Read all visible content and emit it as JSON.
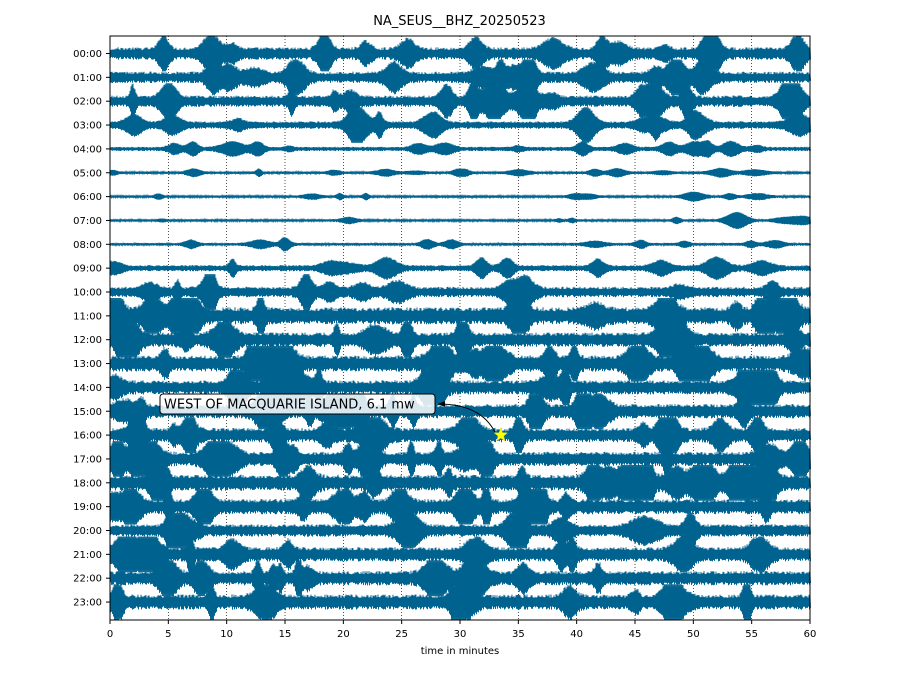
{
  "chart_data": {
    "type": "line",
    "title": "NA_SEUS__BHZ_20250523",
    "xlabel": "time in minutes",
    "ylabel": "",
    "xlim": [
      0,
      60
    ],
    "x_ticks": [
      "0",
      "5",
      "10",
      "15",
      "20",
      "25",
      "30",
      "35",
      "40",
      "45",
      "50",
      "55",
      "60"
    ],
    "vertical_grid": "dotted",
    "trace_color": "#00628f",
    "series": [
      {
        "label": "00:00",
        "amplitude": 0.26
      },
      {
        "label": "01:00",
        "amplitude": 0.24
      },
      {
        "label": "02:00",
        "amplitude": 0.24
      },
      {
        "label": "03:00",
        "amplitude": 0.16
      },
      {
        "label": "04:00",
        "amplitude": 0.09
      },
      {
        "label": "05:00",
        "amplitude": 0.05
      },
      {
        "label": "06:00",
        "amplitude": 0.05
      },
      {
        "label": "07:00",
        "amplitude": 0.05
      },
      {
        "label": "08:00",
        "amplitude": 0.06
      },
      {
        "label": "09:00",
        "amplitude": 0.13
      },
      {
        "label": "10:00",
        "amplitude": 0.22
      },
      {
        "label": "11:00",
        "amplitude": 0.36
      },
      {
        "label": "12:00",
        "amplitude": 0.3
      },
      {
        "label": "13:00",
        "amplitude": 0.34
      },
      {
        "label": "14:00",
        "amplitude": 0.3
      },
      {
        "label": "15:00",
        "amplitude": 0.3
      },
      {
        "label": "16:00",
        "amplitude": 0.3
      },
      {
        "label": "17:00",
        "amplitude": 0.3
      },
      {
        "label": "18:00",
        "amplitude": 0.34
      },
      {
        "label": "19:00",
        "amplitude": 0.32
      },
      {
        "label": "20:00",
        "amplitude": 0.26
      },
      {
        "label": "21:00",
        "amplitude": 0.3
      },
      {
        "label": "22:00",
        "amplitude": 0.3
      },
      {
        "label": "23:00",
        "amplitude": 0.32
      }
    ],
    "event": {
      "label": "WEST OF MACQUARIE ISLAND, 6.1 mw",
      "hour": "16:00",
      "minute": 33.5,
      "marker": "star",
      "marker_color": "#ffff00"
    }
  }
}
